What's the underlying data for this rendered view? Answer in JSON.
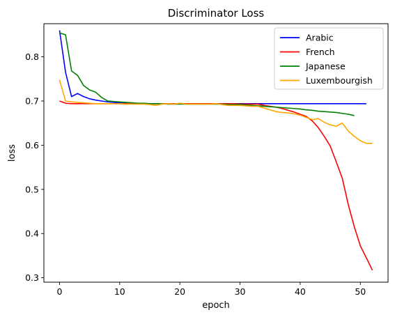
{
  "chart_data": {
    "type": "line",
    "title": "Discriminator Loss",
    "xlabel": "epoch",
    "ylabel": "loss",
    "xlim": [
      -2.6,
      54.6
    ],
    "ylim": [
      0.29,
      0.875
    ],
    "xticks": [
      0,
      10,
      20,
      30,
      40,
      50
    ],
    "yticks": [
      0.3,
      0.4,
      0.5,
      0.6,
      0.7,
      0.8
    ],
    "grid": false,
    "legend_position": "top-right",
    "series": [
      {
        "name": "Arabic",
        "color": "#0000ff",
        "x": [
          0,
          1,
          2,
          3,
          4,
          5,
          6,
          7,
          8,
          9,
          10,
          11,
          12,
          13,
          14,
          15,
          16,
          17,
          18,
          19,
          20,
          21,
          22,
          23,
          24,
          25,
          26,
          27,
          28,
          29,
          30,
          31,
          32,
          33,
          34,
          35,
          36,
          37,
          38,
          39,
          40,
          41,
          42,
          43,
          44,
          45,
          46,
          47,
          48,
          49,
          50,
          51
        ],
        "y": [
          0.86,
          0.765,
          0.71,
          0.717,
          0.71,
          0.705,
          0.702,
          0.7,
          0.698,
          0.697,
          0.696,
          0.695,
          0.695,
          0.694,
          0.694,
          0.694,
          0.694,
          0.694,
          0.694,
          0.694,
          0.694,
          0.694,
          0.694,
          0.694,
          0.694,
          0.694,
          0.694,
          0.694,
          0.694,
          0.694,
          0.694,
          0.694,
          0.694,
          0.694,
          0.694,
          0.694,
          0.694,
          0.694,
          0.694,
          0.694,
          0.694,
          0.694,
          0.694,
          0.694,
          0.694,
          0.694,
          0.694,
          0.694,
          0.694,
          0.694,
          0.694,
          0.694
        ]
      },
      {
        "name": "French",
        "color": "#ff0000",
        "x": [
          0,
          1,
          2,
          3,
          4,
          5,
          6,
          7,
          8,
          9,
          10,
          11,
          12,
          13,
          14,
          15,
          16,
          17,
          18,
          19,
          20,
          21,
          22,
          23,
          24,
          25,
          26,
          27,
          28,
          29,
          30,
          31,
          32,
          33,
          34,
          35,
          36,
          37,
          38,
          39,
          40,
          41,
          42,
          43,
          44,
          45,
          46,
          47,
          48,
          49,
          50,
          51,
          52
        ],
        "y": [
          0.7,
          0.695,
          0.694,
          0.694,
          0.694,
          0.694,
          0.694,
          0.694,
          0.694,
          0.694,
          0.694,
          0.694,
          0.694,
          0.694,
          0.694,
          0.694,
          0.694,
          0.694,
          0.694,
          0.694,
          0.694,
          0.694,
          0.694,
          0.694,
          0.694,
          0.694,
          0.694,
          0.694,
          0.694,
          0.694,
          0.693,
          0.693,
          0.693,
          0.693,
          0.69,
          0.688,
          0.686,
          0.683,
          0.679,
          0.675,
          0.67,
          0.665,
          0.655,
          0.64,
          0.62,
          0.598,
          0.562,
          0.525,
          0.465,
          0.415,
          0.372,
          0.345,
          0.317
        ]
      },
      {
        "name": "Japanese",
        "color": "#008000",
        "x": [
          0,
          1,
          2,
          3,
          4,
          5,
          6,
          7,
          8,
          9,
          10,
          11,
          12,
          13,
          14,
          15,
          16,
          17,
          18,
          19,
          20,
          21,
          22,
          23,
          24,
          25,
          26,
          27,
          28,
          29,
          30,
          31,
          32,
          33,
          34,
          35,
          36,
          37,
          38,
          39,
          40,
          41,
          42,
          43,
          44,
          45,
          46,
          47,
          48,
          49
        ],
        "y": [
          0.854,
          0.85,
          0.768,
          0.758,
          0.735,
          0.725,
          0.72,
          0.708,
          0.7,
          0.699,
          0.698,
          0.697,
          0.696,
          0.695,
          0.695,
          0.694,
          0.694,
          0.694,
          0.693,
          0.693,
          0.693,
          0.693,
          0.693,
          0.693,
          0.693,
          0.693,
          0.693,
          0.693,
          0.692,
          0.692,
          0.692,
          0.691,
          0.69,
          0.689,
          0.688,
          0.687,
          0.686,
          0.685,
          0.684,
          0.683,
          0.682,
          0.68,
          0.679,
          0.677,
          0.676,
          0.675,
          0.674,
          0.672,
          0.67,
          0.667
        ]
      },
      {
        "name": "Luxembourgish",
        "color": "#ffa500",
        "x": [
          0,
          1,
          2,
          3,
          4,
          5,
          6,
          7,
          8,
          9,
          10,
          11,
          12,
          13,
          14,
          15,
          16,
          17,
          18,
          19,
          20,
          21,
          22,
          23,
          24,
          25,
          26,
          27,
          28,
          29,
          30,
          31,
          32,
          33,
          34,
          35,
          36,
          37,
          38,
          39,
          40,
          41,
          42,
          43,
          44,
          45,
          46,
          47,
          48,
          49,
          50,
          51,
          52
        ],
        "y": [
          0.748,
          0.7,
          0.698,
          0.697,
          0.696,
          0.695,
          0.694,
          0.694,
          0.694,
          0.694,
          0.694,
          0.693,
          0.693,
          0.693,
          0.693,
          0.692,
          0.69,
          0.693,
          0.694,
          0.693,
          0.695,
          0.693,
          0.693,
          0.693,
          0.693,
          0.693,
          0.694,
          0.692,
          0.69,
          0.69,
          0.69,
          0.689,
          0.688,
          0.688,
          0.684,
          0.68,
          0.676,
          0.674,
          0.673,
          0.671,
          0.668,
          0.663,
          0.658,
          0.66,
          0.652,
          0.646,
          0.643,
          0.65,
          0.632,
          0.62,
          0.61,
          0.604,
          0.604
        ]
      }
    ]
  }
}
